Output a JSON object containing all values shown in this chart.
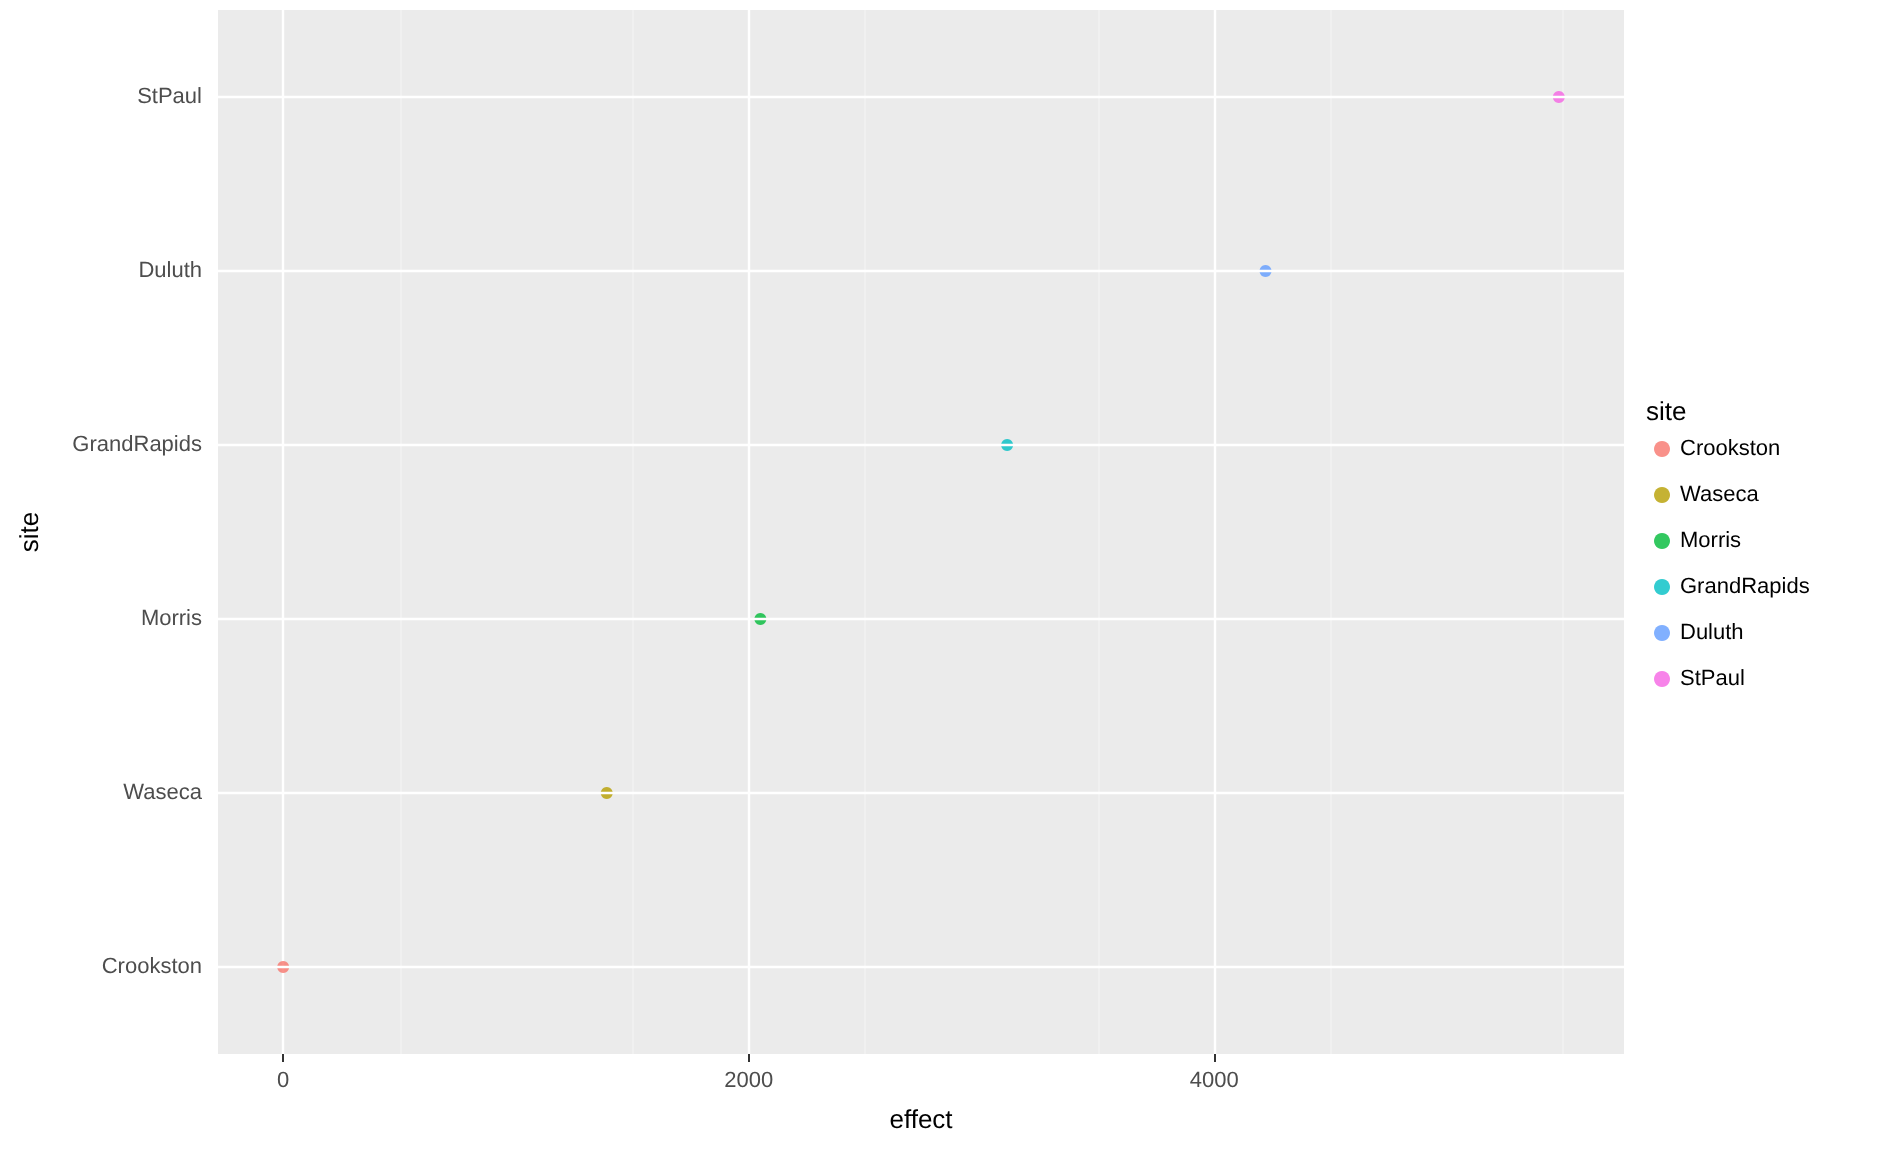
{
  "chart_data": {
    "type": "scatter",
    "orientation": "horizontal",
    "xlabel": "effect",
    "ylabel": "site",
    "legend_title": "site",
    "legend": "right",
    "grid": true,
    "marker": "circle",
    "categories": [
      "StPaul",
      "Duluth",
      "GrandRapids",
      "Morris",
      "Waseca",
      "Crookston"
    ],
    "xlim": [
      -280,
      5760
    ],
    "xticks": [
      0,
      2000,
      4000
    ],
    "series": [
      {
        "name": "Crookston",
        "color": "#f8766d",
        "values": [
          null,
          null,
          null,
          null,
          null,
          0
        ]
      },
      {
        "name": "Waseca",
        "color": "#b79f00",
        "values": [
          null,
          null,
          null,
          null,
          1390,
          null
        ]
      },
      {
        "name": "Morris",
        "color": "#00ba38",
        "values": [
          null,
          null,
          null,
          2050,
          null,
          null
        ]
      },
      {
        "name": "GrandRapids",
        "color": "#00bfc4",
        "values": [
          null,
          null,
          3110,
          null,
          null,
          null
        ]
      },
      {
        "name": "Duluth",
        "color": "#619cff",
        "values": [
          null,
          4220,
          null,
          null,
          null,
          null
        ]
      },
      {
        "name": "StPaul",
        "color": "#f564e3",
        "values": [
          5480,
          null,
          null,
          null,
          null,
          null
        ]
      }
    ]
  }
}
